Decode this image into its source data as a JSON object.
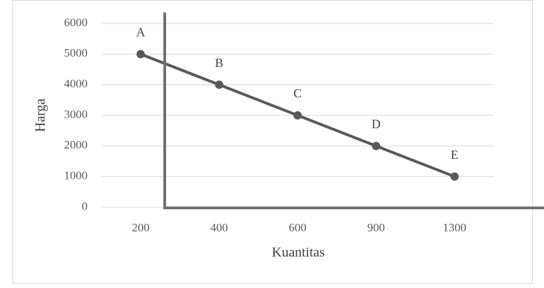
{
  "chart_data": {
    "type": "line",
    "x_label": "Kuantitas",
    "y_label": "Harga",
    "categories": [
      "200",
      "400",
      "600",
      "900",
      "1300"
    ],
    "series": [
      {
        "color": "#595959",
        "values": [
          5000,
          4000,
          3000,
          2000,
          1000
        ],
        "point_labels": [
          "A",
          "B",
          "C",
          "D",
          "E"
        ]
      }
    ],
    "ylim": [
      0,
      6000
    ],
    "yticks": [
      0,
      1000,
      2000,
      3000,
      4000,
      5000,
      6000
    ],
    "grid": true
  }
}
